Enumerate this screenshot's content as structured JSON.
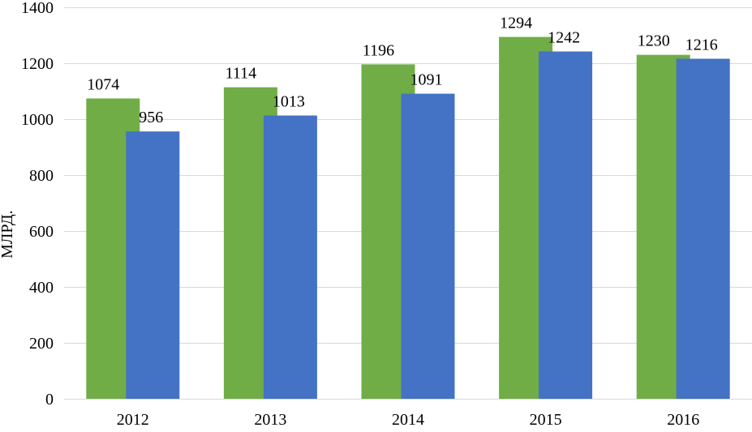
{
  "chart_data": {
    "type": "bar",
    "categories": [
      "2012",
      "2013",
      "2014",
      "2015",
      "2016"
    ],
    "series": [
      {
        "values": [
          1074,
          1114,
          1196,
          1294,
          1230
        ],
        "color": "#70AD47"
      },
      {
        "values": [
          956,
          1013,
          1091,
          1242,
          1216
        ],
        "color": "#4472C4"
      }
    ],
    "title": "",
    "xlabel": "",
    "ylabel": "МЛРД.",
    "ylim": [
      0,
      1400
    ],
    "yticks": [
      0,
      200,
      400,
      600,
      800,
      1000,
      1200,
      1400
    ],
    "grid": "horizontal",
    "gridline_color": "#D9D9D9",
    "data_labels": true,
    "legend": "none"
  }
}
